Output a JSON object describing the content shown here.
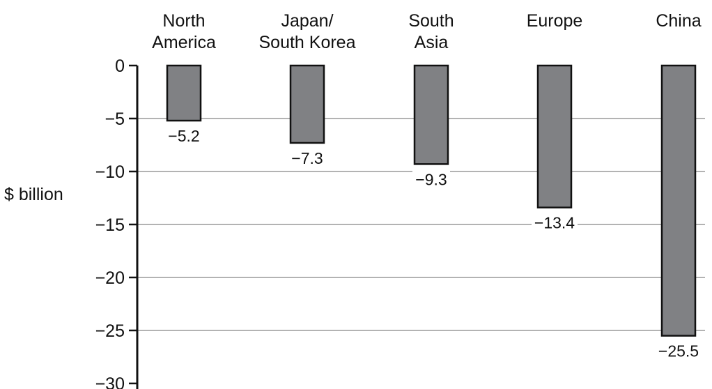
{
  "chart_data": {
    "type": "bar",
    "title": "",
    "xlabel": "",
    "ylabel": "$ billion",
    "categories": [
      [
        "North",
        "America"
      ],
      [
        "Japan/",
        "South Korea"
      ],
      [
        "South",
        "Asia"
      ],
      [
        "Europe"
      ],
      [
        "China"
      ]
    ],
    "values": [
      -5.2,
      -7.3,
      -9.3,
      -13.4,
      -25.5
    ],
    "data_labels": [
      "−5.2",
      "−7.3",
      "−9.3",
      "−13.4",
      "−25.5"
    ],
    "ylim": [
      -30,
      0
    ],
    "yticks": [
      0,
      -5,
      -10,
      -15,
      -20,
      -25,
      -30
    ],
    "ytick_labels": [
      "0",
      "−5",
      "−10",
      "−15",
      "−20",
      "−25",
      "−30"
    ],
    "grid": true,
    "legend": "none",
    "colors": {
      "bar_fill": "#808184",
      "bar_stroke": "#111111",
      "grid": "#b3b3b3",
      "axis": "#111111"
    }
  }
}
